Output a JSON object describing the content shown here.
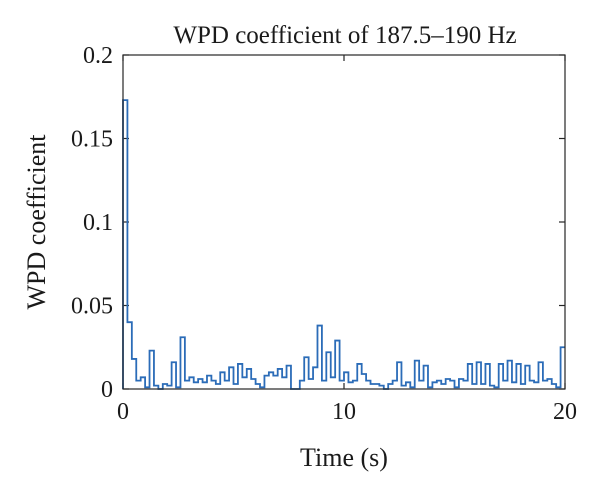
{
  "chart_data": {
    "type": "line",
    "step": true,
    "title": "WPD coefficient of 187.5–190 Hz",
    "xlabel": "Time (s)",
    "ylabel": "WPD coefficient",
    "xlim": [
      0,
      20
    ],
    "ylim": [
      0,
      0.2
    ],
    "xticks": [
      0,
      10,
      20
    ],
    "xtick_labels": [
      "0",
      "10",
      "20"
    ],
    "yticks": [
      0,
      0.05,
      0.1,
      0.15,
      0.2
    ],
    "ytick_labels": [
      "0",
      "0.05",
      "0.1",
      "0.15",
      "0.2"
    ],
    "grid": false,
    "line_color": "#2b6cb8",
    "bin_width": 0.2,
    "series": [
      {
        "values": [
          0.173,
          0.04,
          0.018,
          0.005,
          0.007,
          0.001,
          0.023,
          0.002,
          0.0,
          0.003,
          0.002,
          0.016,
          0.001,
          0.031,
          0.005,
          0.007,
          0.004,
          0.006,
          0.004,
          0.008,
          0.005,
          0.003,
          0.01,
          0.005,
          0.013,
          0.003,
          0.015,
          0.007,
          0.012,
          0.006,
          0.003,
          0.001,
          0.008,
          0.01,
          0.008,
          0.012,
          0.007,
          0.014,
          0.0,
          0.0,
          0.005,
          0.019,
          0.006,
          0.013,
          0.038,
          0.005,
          0.022,
          0.007,
          0.029,
          0.005,
          0.01,
          0.004,
          0.005,
          0.015,
          0.009,
          0.005,
          0.003,
          0.003,
          0.002,
          0.0,
          0.003,
          0.005,
          0.016,
          0.002,
          0.004,
          0.001,
          0.017,
          0.005,
          0.014,
          0.001,
          0.004,
          0.005,
          0.003,
          0.006,
          0.005,
          0.001,
          0.006,
          0.005,
          0.015,
          0.003,
          0.016,
          0.003,
          0.015,
          0.002,
          0.001,
          0.015,
          0.005,
          0.017,
          0.004,
          0.015,
          0.003,
          0.014,
          0.005,
          0.004,
          0.016,
          0.005,
          0.006,
          0.003,
          0.001,
          0.025
        ]
      }
    ]
  }
}
